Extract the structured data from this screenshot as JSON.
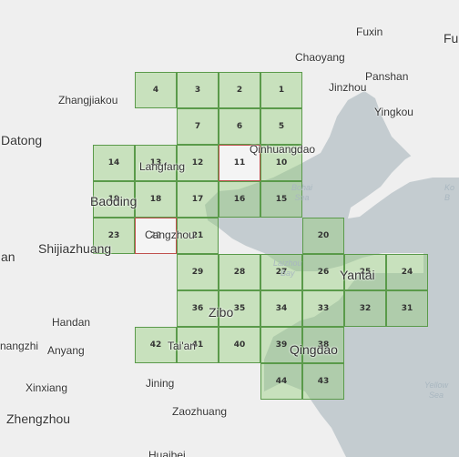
{
  "colors": {
    "land": "#efefef",
    "sea": "#c4ccd0",
    "tile_fill": "#92cc78",
    "tile_border": "#5a9a4a",
    "selected_border": "#c0504d"
  },
  "grid_cells": [
    {
      "label": "4",
      "col": 0,
      "row": 0,
      "selected": false
    },
    {
      "label": "3",
      "col": 1,
      "row": 0,
      "selected": false
    },
    {
      "label": "2",
      "col": 2,
      "row": 0,
      "selected": false
    },
    {
      "label": "1",
      "col": 3,
      "row": 0,
      "selected": false
    },
    {
      "label": "7",
      "col": 1,
      "row": 1,
      "selected": false
    },
    {
      "label": "6",
      "col": 2,
      "row": 1,
      "selected": false
    },
    {
      "label": "5",
      "col": 3,
      "row": 1,
      "selected": false
    },
    {
      "label": "14",
      "col": -1,
      "row": 2,
      "selected": false
    },
    {
      "label": "13",
      "col": 0,
      "row": 2,
      "selected": false
    },
    {
      "label": "12",
      "col": 1,
      "row": 2,
      "selected": false
    },
    {
      "label": "11",
      "col": 2,
      "row": 2,
      "selected": true
    },
    {
      "label": "10",
      "col": 3,
      "row": 2,
      "selected": false
    },
    {
      "label": "19",
      "col": -1,
      "row": 3,
      "selected": false
    },
    {
      "label": "18",
      "col": 0,
      "row": 3,
      "selected": false
    },
    {
      "label": "17",
      "col": 1,
      "row": 3,
      "selected": false
    },
    {
      "label": "16",
      "col": 2,
      "row": 3,
      "selected": false
    },
    {
      "label": "15",
      "col": 3,
      "row": 3,
      "selected": false
    },
    {
      "label": "23",
      "col": -1,
      "row": 4,
      "selected": false
    },
    {
      "label": "22",
      "col": 0,
      "row": 4,
      "selected": true
    },
    {
      "label": "21",
      "col": 1,
      "row": 4,
      "selected": false
    },
    {
      "label": "20",
      "col": 4,
      "row": 4,
      "selected": false
    },
    {
      "label": "29",
      "col": 1,
      "row": 5,
      "selected": false
    },
    {
      "label": "28",
      "col": 2,
      "row": 5,
      "selected": false
    },
    {
      "label": "27",
      "col": 3,
      "row": 5,
      "selected": false
    },
    {
      "label": "26",
      "col": 4,
      "row": 5,
      "selected": false
    },
    {
      "label": "25",
      "col": 5,
      "row": 5,
      "selected": false
    },
    {
      "label": "24",
      "col": 6,
      "row": 5,
      "selected": false
    },
    {
      "label": "36",
      "col": 1,
      "row": 6,
      "selected": false
    },
    {
      "label": "35",
      "col": 2,
      "row": 6,
      "selected": false
    },
    {
      "label": "34",
      "col": 3,
      "row": 6,
      "selected": false
    },
    {
      "label": "33",
      "col": 4,
      "row": 6,
      "selected": false
    },
    {
      "label": "32",
      "col": 5,
      "row": 6,
      "selected": false
    },
    {
      "label": "31",
      "col": 6,
      "row": 6,
      "selected": false
    },
    {
      "label": "42",
      "col": 0,
      "row": 7,
      "selected": false
    },
    {
      "label": "41",
      "col": 1,
      "row": 7,
      "selected": false
    },
    {
      "label": "40",
      "col": 2,
      "row": 7,
      "selected": false
    },
    {
      "label": "39",
      "col": 3,
      "row": 7,
      "selected": false
    },
    {
      "label": "38",
      "col": 4,
      "row": 7,
      "selected": false
    },
    {
      "label": "44",
      "col": 3,
      "row": 8,
      "selected": false
    },
    {
      "label": "43",
      "col": 4,
      "row": 8,
      "selected": false
    }
  ],
  "places": {
    "fuxin": "Fuxin",
    "fu_cut": "Fu",
    "chaoyang": "Chaoyang",
    "panshan": "Panshan",
    "jinzhou": "Jinzhou",
    "yingkou": "Yingkou",
    "zhangjiakou": "Zhangjiakou",
    "datong": "Datong",
    "qinhuangdao": "Qinhuangdao",
    "langfang": "Langfang",
    "baoding": "Baoding",
    "cangzhou": "Cangzhou",
    "shijiazhuang": "Shijiazhuang",
    "an_cut": "an",
    "yantai": "Yantai",
    "zibo": "Zibo",
    "handan": "Handan",
    "anyang": "Anyang",
    "hengzhi_cut": "nangzhi",
    "taian": "Tai'an",
    "qingdao": "Qingdao",
    "xinxiang": "Xinxiang",
    "jining": "Jining",
    "zhengzhou": "Zhengzhou",
    "zaozhuang": "Zaozhuang",
    "huaibei_cut": "Huaibei",
    "ko_cut": "Ko"
  },
  "seas": {
    "bohai": "Bohai\nSea",
    "laizhou": "Laizhou\nBay",
    "yellow": "Yellow\nSea",
    "korea_cut": "Ko\nB"
  }
}
